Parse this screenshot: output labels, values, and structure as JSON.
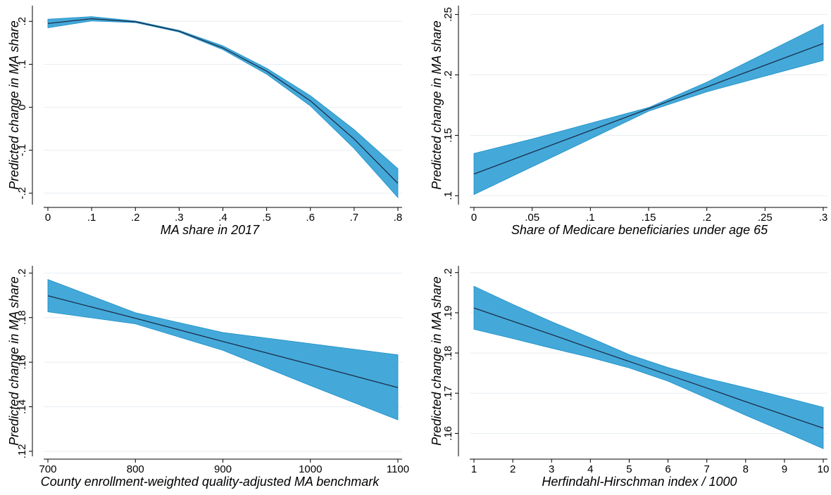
{
  "colors": {
    "band": "#44a9d9",
    "band_edge": "#1d8fc8",
    "line": "#1c2e4a",
    "grid": "#e8eef2",
    "axis": "#000000"
  },
  "chart_data": [
    {
      "type": "line",
      "xlabel": "MA share in 2017",
      "ylabel": "Predicted change in MA share",
      "xlim": [
        0,
        0.8
      ],
      "ylim": [
        -0.22,
        0.23
      ],
      "xticks": [
        0,
        0.1,
        0.2,
        0.3,
        0.4,
        0.5,
        0.6,
        0.7,
        0.8
      ],
      "xtick_labels": [
        "0",
        ".1",
        ".2",
        ".3",
        ".4",
        ".5",
        ".6",
        ".7",
        ".8"
      ],
      "yticks": [
        -0.2,
        -0.1,
        0,
        0.1,
        0.2
      ],
      "ytick_labels": [
        "-.2",
        "-.1",
        "0",
        ".1",
        ".2"
      ],
      "grid": true,
      "x": [
        0,
        0.1,
        0.2,
        0.3,
        0.4,
        0.5,
        0.6,
        0.7,
        0.8
      ],
      "series": [
        {
          "values": [
            0.195,
            0.206,
            0.199,
            0.177,
            0.138,
            0.084,
            0.015,
            -0.074,
            -0.177
          ],
          "lower": [
            0.185,
            0.201,
            0.197,
            0.175,
            0.134,
            0.077,
            0.003,
            -0.096,
            -0.21
          ],
          "upper": [
            0.205,
            0.211,
            0.201,
            0.179,
            0.143,
            0.091,
            0.027,
            -0.052,
            -0.143
          ]
        }
      ]
    },
    {
      "type": "line",
      "xlabel": "Share of Medicare beneficiaries under age 65",
      "ylabel": "Predicted change in MA share",
      "xlim": [
        0,
        0.3
      ],
      "ylim": [
        0.095,
        0.255
      ],
      "xticks": [
        0,
        0.05,
        0.1,
        0.15,
        0.2,
        0.25,
        0.3
      ],
      "xtick_labels": [
        "0",
        ".05",
        ".1",
        ".15",
        ".2",
        ".25",
        ".3"
      ],
      "yticks": [
        0.1,
        0.15,
        0.2,
        0.25
      ],
      "ytick_labels": [
        ".1",
        ".15",
        ".2",
        ".25"
      ],
      "grid": true,
      "x": [
        0,
        0.05,
        0.1,
        0.15,
        0.2,
        0.25,
        0.3
      ],
      "series": [
        {
          "values": [
            0.118,
            0.136,
            0.154,
            0.172,
            0.19,
            0.208,
            0.226
          ],
          "lower": [
            0.101,
            0.124,
            0.147,
            0.17,
            0.186,
            0.199,
            0.212
          ],
          "upper": [
            0.135,
            0.147,
            0.16,
            0.173,
            0.194,
            0.218,
            0.242
          ]
        }
      ]
    },
    {
      "type": "line",
      "xlabel": "County enrollment-weighted quality-adjusted MA benchmark",
      "ylabel": "Predicted change in MA share",
      "xlim": [
        700,
        1100
      ],
      "ylim": [
        0.119,
        0.202
      ],
      "xticks": [
        700,
        800,
        900,
        1000,
        1100
      ],
      "xtick_labels": [
        "700",
        "800",
        "900",
        "1000",
        "1100"
      ],
      "yticks": [
        0.12,
        0.14,
        0.16,
        0.18,
        0.2
      ],
      "ytick_labels": [
        ".12",
        ".14",
        ".16",
        ".18",
        ".2"
      ],
      "grid": true,
      "x": [
        700,
        800,
        900,
        1000,
        1100
      ],
      "series": [
        {
          "values": [
            0.1898,
            0.1797,
            0.1693,
            0.159,
            0.1486
          ],
          "lower": [
            0.1826,
            0.1772,
            0.1653,
            0.1495,
            0.1341
          ],
          "upper": [
            0.1971,
            0.1822,
            0.1733,
            0.1683,
            0.1633
          ]
        }
      ]
    },
    {
      "type": "line",
      "xlabel": "Herfindahl-Hirschman index / 1000",
      "ylabel": "Predicted change in MA share",
      "xlim": [
        1,
        10
      ],
      "ylim": [
        0.155,
        0.201
      ],
      "xticks": [
        1,
        2,
        3,
        4,
        5,
        6,
        7,
        8,
        9,
        10
      ],
      "xtick_labels": [
        "1",
        "2",
        "3",
        "4",
        "5",
        "6",
        "7",
        "8",
        "9",
        "10"
      ],
      "yticks": [
        0.16,
        0.17,
        0.18,
        0.19,
        0.2
      ],
      "ytick_labels": [
        ".16",
        ".17",
        ".18",
        ".19",
        ".2"
      ],
      "grid": true,
      "x": [
        1,
        2,
        3,
        4,
        5,
        6,
        7,
        8,
        9,
        10
      ],
      "series": [
        {
          "values": [
            0.1912,
            0.1879,
            0.1846,
            0.1812,
            0.1779,
            0.1746,
            0.1713,
            0.1679,
            0.1646,
            0.1613
          ],
          "lower": [
            0.1859,
            0.1836,
            0.1812,
            0.1789,
            0.1763,
            0.173,
            0.1688,
            0.1645,
            0.1604,
            0.1562
          ],
          "upper": [
            0.1966,
            0.1921,
            0.1878,
            0.1838,
            0.1796,
            0.1764,
            0.1737,
            0.1714,
            0.169,
            0.1665
          ]
        }
      ]
    }
  ]
}
